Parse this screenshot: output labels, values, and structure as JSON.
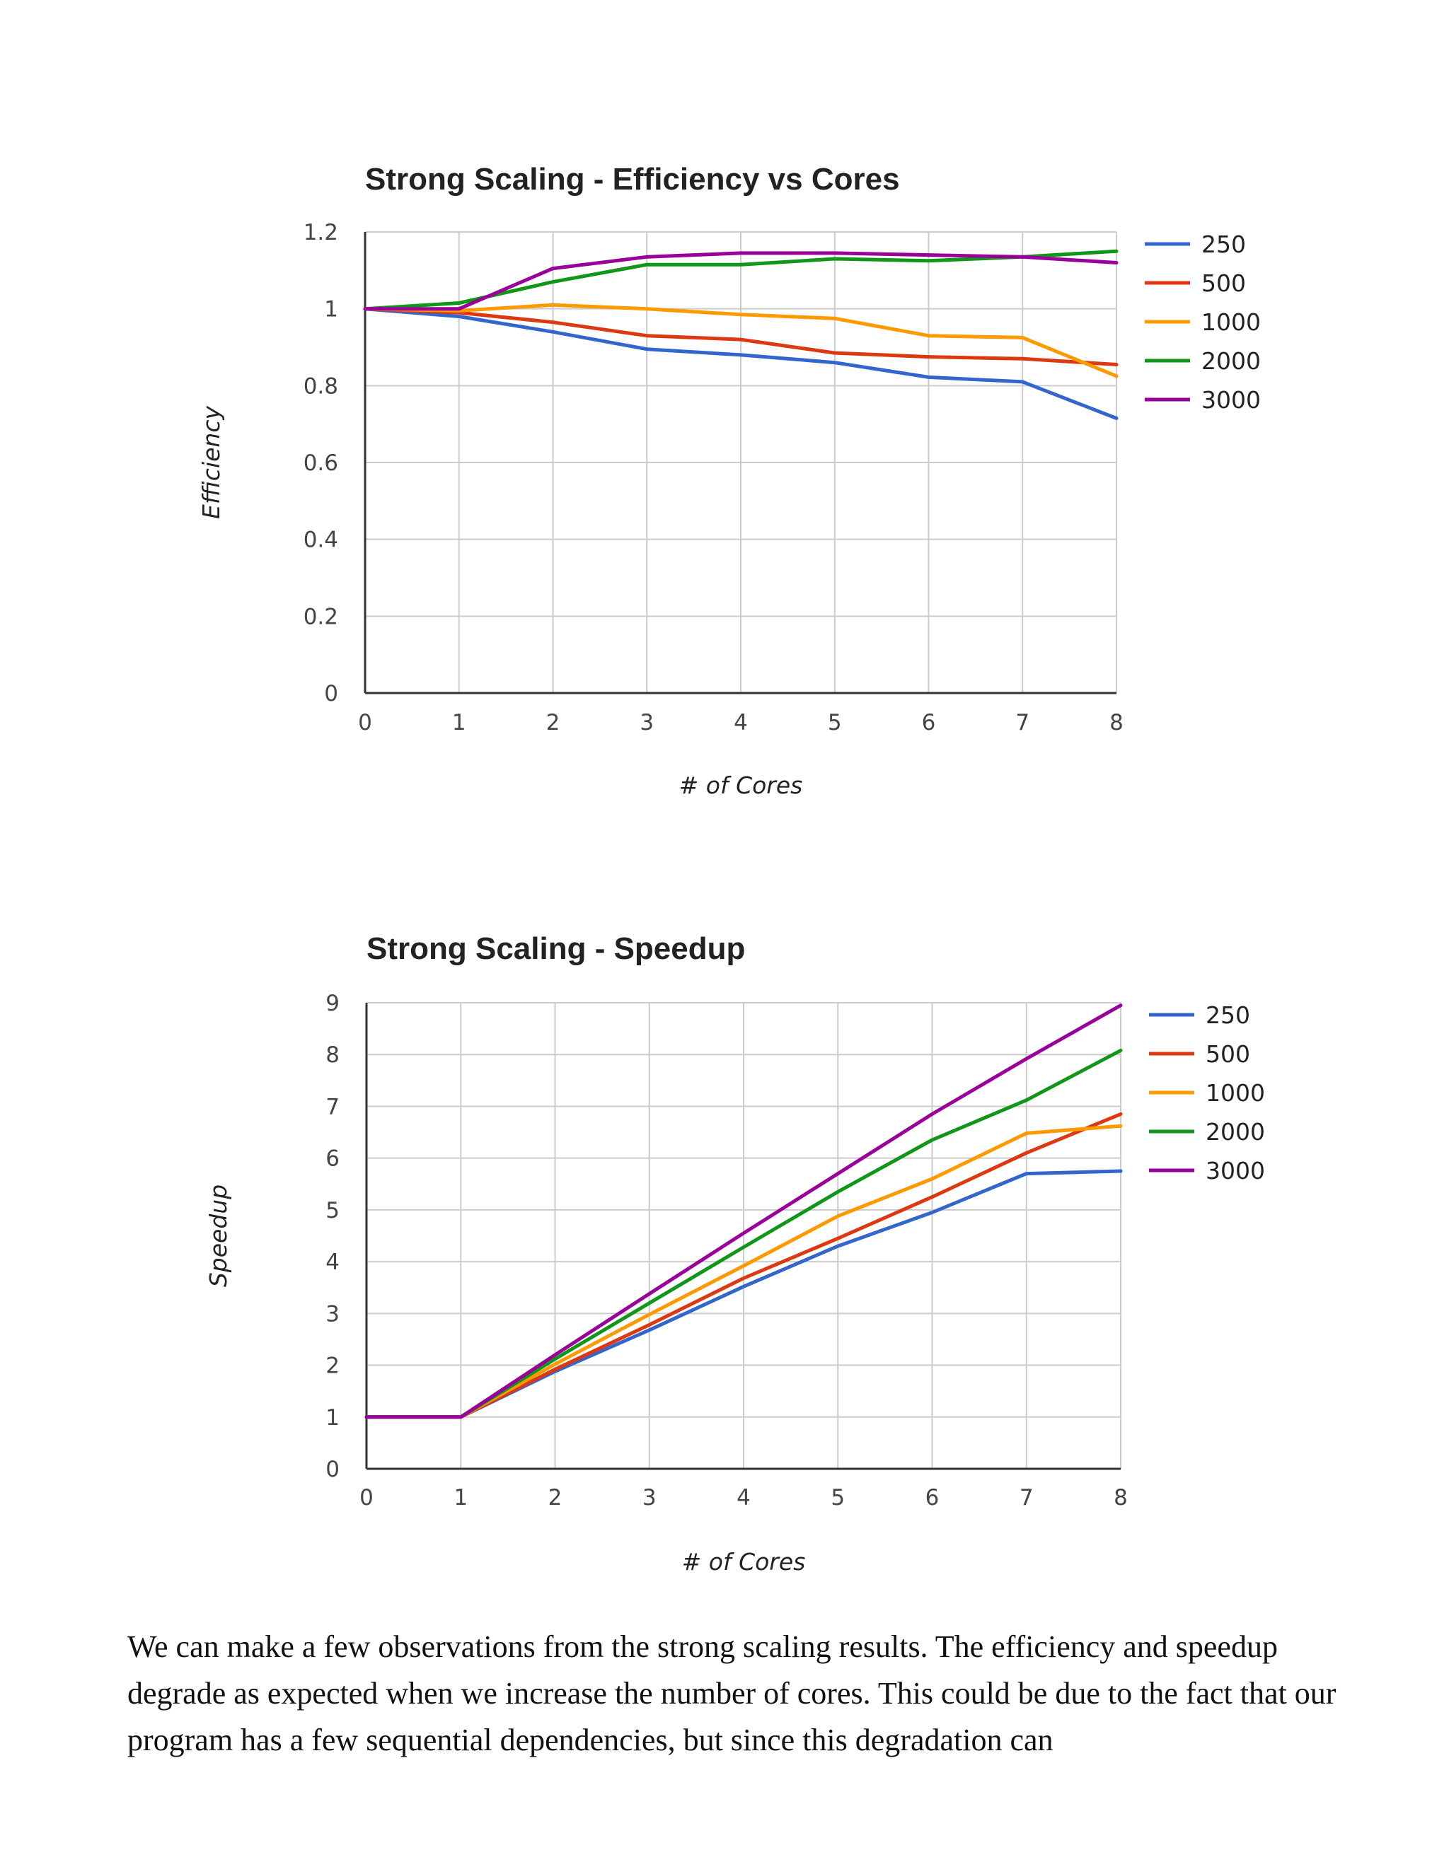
{
  "chart_data": [
    {
      "type": "line",
      "title": "Strong Scaling - Efficiency vs Cores",
      "xlabel": "# of Cores",
      "ylabel": "Efficiency",
      "xlim": [
        0,
        8
      ],
      "ylim": [
        0,
        1.2
      ],
      "x": [
        0,
        1,
        2,
        3,
        4,
        5,
        6,
        7,
        8
      ],
      "x_ticks": [
        "0",
        "1",
        "2",
        "3",
        "4",
        "5",
        "6",
        "7",
        "8"
      ],
      "y_ticks": [
        "0",
        "0.2",
        "0.4",
        "0.6",
        "0.8",
        "1",
        "1.2"
      ],
      "y_tick_values": [
        0,
        0.2,
        0.4,
        0.6,
        0.8,
        1.0,
        1.2
      ],
      "grid": true,
      "legend": "right",
      "series": [
        {
          "name": "250",
          "color": "#3366cc",
          "values": [
            1.0,
            0.98,
            0.94,
            0.895,
            0.88,
            0.86,
            0.822,
            0.81,
            0.715
          ]
        },
        {
          "name": "500",
          "color": "#dc3912",
          "values": [
            1.0,
            0.99,
            0.965,
            0.93,
            0.92,
            0.885,
            0.875,
            0.87,
            0.855
          ]
        },
        {
          "name": "1000",
          "color": "#ff9900",
          "values": [
            1.0,
            0.995,
            1.01,
            1.0,
            0.985,
            0.975,
            0.93,
            0.925,
            0.825
          ]
        },
        {
          "name": "2000",
          "color": "#109618",
          "values": [
            1.0,
            1.015,
            1.07,
            1.115,
            1.115,
            1.13,
            1.125,
            1.135,
            1.15
          ]
        },
        {
          "name": "3000",
          "color": "#990099",
          "values": [
            1.0,
            1.0,
            1.105,
            1.135,
            1.145,
            1.145,
            1.14,
            1.135,
            1.12
          ]
        }
      ]
    },
    {
      "type": "line",
      "title": "Strong Scaling - Speedup",
      "xlabel": "# of Cores",
      "ylabel": "Speedup",
      "xlim": [
        0,
        8
      ],
      "ylim": [
        0,
        9
      ],
      "x": [
        0,
        1,
        2,
        3,
        4,
        5,
        6,
        7,
        8
      ],
      "x_ticks": [
        "0",
        "1",
        "2",
        "3",
        "4",
        "5",
        "6",
        "7",
        "8"
      ],
      "y_ticks": [
        "0",
        "1",
        "2",
        "3",
        "4",
        "5",
        "6",
        "7",
        "8",
        "9"
      ],
      "y_tick_values": [
        0,
        1,
        2,
        3,
        4,
        5,
        6,
        7,
        8,
        9
      ],
      "grid": true,
      "legend": "right",
      "series": [
        {
          "name": "250",
          "color": "#3366cc",
          "values": [
            1,
            1,
            1.88,
            2.68,
            3.52,
            4.3,
            4.95,
            5.7,
            5.75
          ]
        },
        {
          "name": "500",
          "color": "#dc3912",
          "values": [
            1,
            1,
            1.92,
            2.78,
            3.68,
            4.45,
            5.25,
            6.1,
            6.85
          ]
        },
        {
          "name": "1000",
          "color": "#ff9900",
          "values": [
            1,
            1,
            2.02,
            2.98,
            3.92,
            4.88,
            5.6,
            6.48,
            6.62
          ]
        },
        {
          "name": "2000",
          "color": "#109618",
          "values": [
            1,
            1,
            2.12,
            3.2,
            4.28,
            5.35,
            6.35,
            7.12,
            8.08
          ]
        },
        {
          "name": "3000",
          "color": "#990099",
          "values": [
            1,
            1,
            2.2,
            3.38,
            4.55,
            5.7,
            6.85,
            7.92,
            8.95
          ]
        }
      ]
    }
  ],
  "body_text": "We can make a few observations from the strong scaling results. The efficiency and speedup degrade as expected when we increase the number of cores. This could be due to the fact that our program has a few sequential dependencies, but since this degradation can"
}
